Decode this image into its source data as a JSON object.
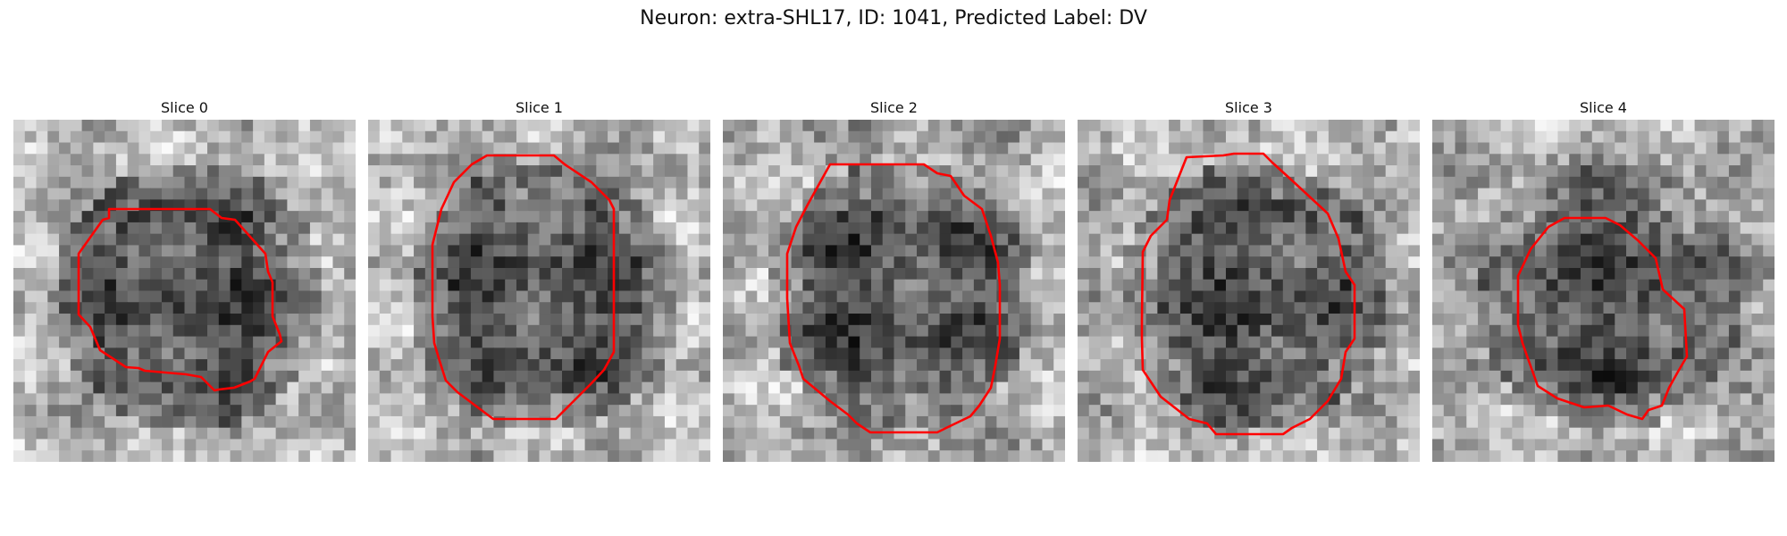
{
  "figure": {
    "title": "Neuron: extra-SHL17, ID: 1041, Predicted Label: DV"
  },
  "slices": [
    {
      "label": "Slice 0"
    },
    {
      "label": "Slice 1"
    },
    {
      "label": "Slice 2"
    },
    {
      "label": "Slice 3"
    },
    {
      "label": "Slice 4"
    }
  ],
  "colors": {
    "contour": "#ff0000",
    "colormap": "grayscale"
  }
}
